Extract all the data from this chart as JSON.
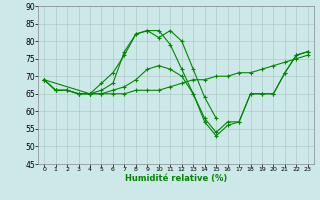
{
  "xlabel": "Humidité relative (%)",
  "bg_color": "#cce8e8",
  "grid_color": "#b0c8c8",
  "line_color": "#008800",
  "xlim": [
    -0.5,
    23.5
  ],
  "ylim": [
    45,
    90
  ],
  "yticks": [
    45,
    50,
    55,
    60,
    65,
    70,
    75,
    80,
    85,
    90
  ],
  "xticks": [
    0,
    1,
    2,
    3,
    4,
    5,
    6,
    7,
    8,
    9,
    10,
    11,
    12,
    13,
    14,
    15,
    16,
    17,
    18,
    19,
    20,
    21,
    22,
    23
  ],
  "series": [
    {
      "x": [
        0,
        1,
        2,
        3,
        4,
        5,
        6,
        7,
        8,
        9,
        10,
        11,
        12,
        13,
        14,
        15,
        16,
        17,
        18,
        19,
        20,
        21,
        22,
        23
      ],
      "y": [
        69,
        66,
        66,
        65,
        65,
        65,
        65,
        65,
        66,
        66,
        66,
        67,
        68,
        69,
        69,
        70,
        70,
        71,
        71,
        72,
        73,
        74,
        75,
        76
      ]
    },
    {
      "x": [
        0,
        1,
        2,
        3,
        4,
        5,
        6,
        7,
        8,
        9,
        10,
        11,
        12,
        13,
        14,
        15,
        16,
        17,
        18,
        19,
        20,
        21,
        22,
        23
      ],
      "y": [
        69,
        66,
        66,
        65,
        65,
        65,
        66,
        67,
        69,
        72,
        73,
        72,
        70,
        65,
        57,
        53,
        56,
        57,
        65,
        65,
        65,
        71,
        76,
        77
      ]
    },
    {
      "x": [
        0,
        1,
        2,
        3,
        4,
        5,
        6,
        7,
        8,
        9,
        10,
        11,
        12,
        13,
        14,
        15
      ],
      "y": [
        69,
        66,
        66,
        65,
        65,
        68,
        71,
        76,
        82,
        83,
        81,
        83,
        80,
        72,
        64,
        58
      ]
    },
    {
      "x": [
        0,
        4,
        5,
        6,
        7,
        8,
        9,
        10,
        11,
        12,
        13,
        14,
        15,
        16,
        17,
        18,
        19,
        20,
        21,
        22,
        23
      ],
      "y": [
        69,
        65,
        66,
        68,
        77,
        82,
        83,
        83,
        79,
        72,
        65,
        58,
        54,
        57,
        57,
        65,
        65,
        65,
        71,
        76,
        77
      ]
    }
  ]
}
